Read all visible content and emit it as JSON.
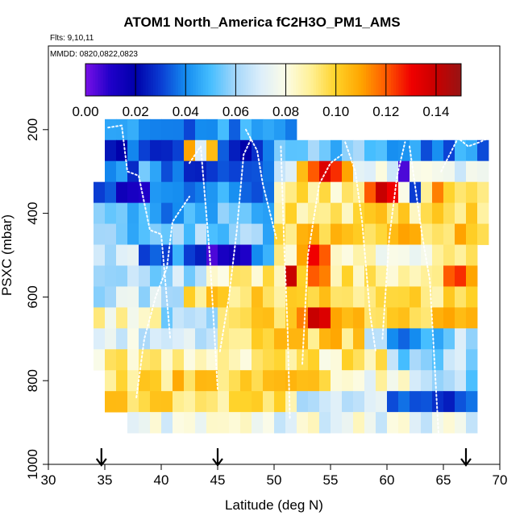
{
  "chart_data": {
    "type": "heatmap",
    "title": "ATOM1 North_America fC2H3O_PM1_AMS",
    "flights_text": "Flts: 9,10,11",
    "dates_text": "MMDD: 0820,0822,0823",
    "xlabel": "Latitude (deg N)",
    "ylabel": "PSXC (mbar)",
    "xlim": [
      30,
      70
    ],
    "ylim": [
      1000,
      0
    ],
    "x_ticks": [
      "30",
      "35",
      "40",
      "45",
      "50",
      "55",
      "60",
      "65",
      "70"
    ],
    "y_ticks": [
      "200",
      "400",
      "600",
      "800",
      "1000"
    ],
    "colorbar": {
      "range": [
        0.0,
        0.15
      ],
      "tick_labels": [
        "0.00",
        "0.02",
        "0.04",
        "0.06",
        "0.08",
        "0.10",
        "0.12",
        "0.14"
      ]
    },
    "bin_width_deg": 1,
    "bin_height_mbar": 50,
    "row_ranges": [
      {
        "p": 200,
        "start": 35,
        "end": 52
      },
      {
        "p": 250,
        "start": 35,
        "end": 69
      },
      {
        "p": 300,
        "start": 35,
        "end": 69
      },
      {
        "p": 350,
        "start": 34,
        "end": 69
      },
      {
        "p": 400,
        "start": 34,
        "end": 69
      },
      {
        "p": 450,
        "start": 34,
        "end": 69
      },
      {
        "p": 500,
        "start": 34,
        "end": 68
      },
      {
        "p": 550,
        "start": 34,
        "end": 68
      },
      {
        "p": 600,
        "start": 34,
        "end": 68
      },
      {
        "p": 650,
        "start": 34,
        "end": 68
      },
      {
        "p": 700,
        "start": 34,
        "end": 68
      },
      {
        "p": 750,
        "start": 34,
        "end": 68
      },
      {
        "p": 800,
        "start": 35,
        "end": 68
      },
      {
        "p": 850,
        "start": 35,
        "end": 68
      },
      {
        "p": 900,
        "start": 37,
        "end": 68
      }
    ],
    "cells": [
      {
        "lat": 38,
        "p": 300,
        "v": 0.055
      },
      {
        "lat": 39,
        "p": 300,
        "v": 0.045
      },
      {
        "lat": 37,
        "p": 350,
        "v": 0.012
      },
      {
        "lat": 38,
        "p": 350,
        "v": 0.01
      },
      {
        "lat": 36,
        "p": 350,
        "v": 0.015
      },
      {
        "lat": 40,
        "p": 400,
        "v": 0.035
      },
      {
        "lat": 41,
        "p": 400,
        "v": 0.04
      },
      {
        "lat": 42,
        "p": 250,
        "v": 0.11
      },
      {
        "lat": 43,
        "p": 250,
        "v": 0.07
      },
      {
        "lat": 44,
        "p": 250,
        "v": 0.105
      },
      {
        "lat": 46,
        "p": 250,
        "v": 0.025
      },
      {
        "lat": 47,
        "p": 250,
        "v": 0.02
      },
      {
        "lat": 53,
        "p": 300,
        "v": 0.12
      },
      {
        "lat": 54,
        "p": 300,
        "v": 0.135
      },
      {
        "lat": 55,
        "p": 300,
        "v": 0.125
      },
      {
        "lat": 56,
        "p": 300,
        "v": 0.11
      },
      {
        "lat": 52,
        "p": 300,
        "v": 0.105
      },
      {
        "lat": 58,
        "p": 350,
        "v": 0.12
      },
      {
        "lat": 59,
        "p": 350,
        "v": 0.14
      },
      {
        "lat": 60,
        "p": 350,
        "v": 0.13
      },
      {
        "lat": 61,
        "p": 300,
        "v": 0.005
      },
      {
        "lat": 62,
        "p": 350,
        "v": 0.03
      },
      {
        "lat": 64,
        "p": 350,
        "v": 0.115
      },
      {
        "lat": 63,
        "p": 350,
        "v": 0.09
      },
      {
        "lat": 44,
        "p": 500,
        "v": 0.005
      },
      {
        "lat": 45,
        "p": 500,
        "v": 0.012
      },
      {
        "lat": 46,
        "p": 500,
        "v": 0.015
      },
      {
        "lat": 47,
        "p": 500,
        "v": 0.01
      },
      {
        "lat": 48,
        "p": 500,
        "v": 0.04
      },
      {
        "lat": 42,
        "p": 500,
        "v": 0.03
      },
      {
        "lat": 43,
        "p": 500,
        "v": 0.025
      },
      {
        "lat": 38,
        "p": 500,
        "v": 0.03
      },
      {
        "lat": 39,
        "p": 500,
        "v": 0.035
      },
      {
        "lat": 53,
        "p": 500,
        "v": 0.13
      },
      {
        "lat": 54,
        "p": 500,
        "v": 0.12
      },
      {
        "lat": 52,
        "p": 500,
        "v": 0.11
      },
      {
        "lat": 53,
        "p": 550,
        "v": 0.12
      },
      {
        "lat": 54,
        "p": 550,
        "v": 0.115
      },
      {
        "lat": 51,
        "p": 550,
        "v": 0.14
      },
      {
        "lat": 52,
        "p": 550,
        "v": 0.1
      },
      {
        "lat": 56,
        "p": 550,
        "v": 0.1
      },
      {
        "lat": 61,
        "p": 550,
        "v": 0.09
      },
      {
        "lat": 65,
        "p": 550,
        "v": 0.12
      },
      {
        "lat": 66,
        "p": 550,
        "v": 0.125
      },
      {
        "lat": 67,
        "p": 550,
        "v": 0.11
      },
      {
        "lat": 53,
        "p": 650,
        "v": 0.14
      },
      {
        "lat": 54,
        "p": 650,
        "v": 0.135
      },
      {
        "lat": 52,
        "p": 650,
        "v": 0.115
      },
      {
        "lat": 55,
        "p": 650,
        "v": 0.11
      },
      {
        "lat": 56,
        "p": 650,
        "v": 0.105
      },
      {
        "lat": 60,
        "p": 700,
        "v": 0.04
      },
      {
        "lat": 61,
        "p": 700,
        "v": 0.035
      },
      {
        "lat": 62,
        "p": 700,
        "v": 0.04
      },
      {
        "lat": 63,
        "p": 700,
        "v": 0.05
      },
      {
        "lat": 64,
        "p": 700,
        "v": 0.045
      },
      {
        "lat": 65,
        "p": 650,
        "v": 0.11
      },
      {
        "lat": 66,
        "p": 650,
        "v": 0.105
      }
    ],
    "flight_arrows_lat": [
      34.7,
      45.0,
      67.0
    ]
  }
}
